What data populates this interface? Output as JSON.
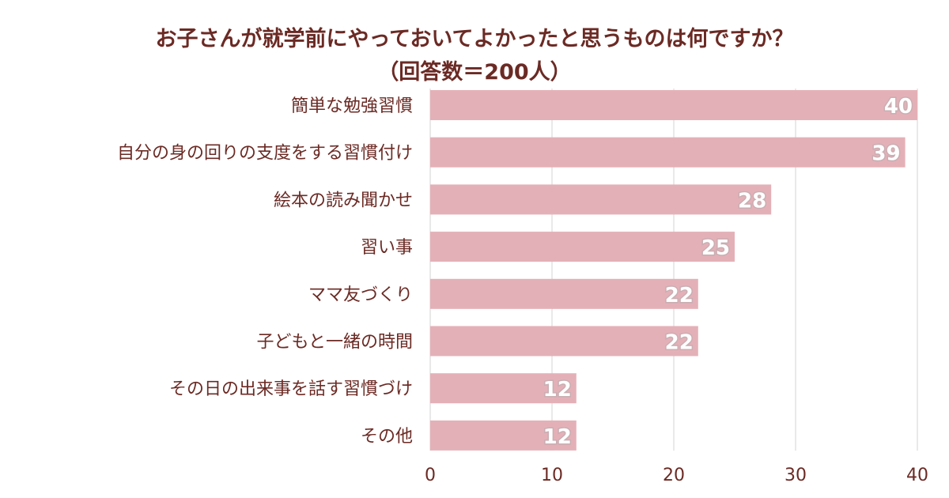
{
  "chart_data": {
    "type": "bar",
    "orientation": "horizontal",
    "title": "お子さんが就学前にやっておいてよかったと思うものは何ですか？",
    "subtitle": "（回答数＝200人）",
    "categories": [
      "簡単な勉強習慣",
      "自分の身の回りの支度をする習慣付け",
      "絵本の読み聞かせ",
      "習い事",
      "ママ友づくり",
      "子どもと一緒の時間",
      "その日の出来事を話す習慣づけ",
      "その他"
    ],
    "values": [
      40,
      39,
      28,
      25,
      22,
      22,
      12,
      12
    ],
    "xlim": [
      0,
      40
    ],
    "xticks": [
      0,
      10,
      20,
      30,
      40
    ],
    "grid": true,
    "legend": "none",
    "colors": {
      "bar": "#e4b0b7",
      "text": "#6b2a24"
    }
  }
}
